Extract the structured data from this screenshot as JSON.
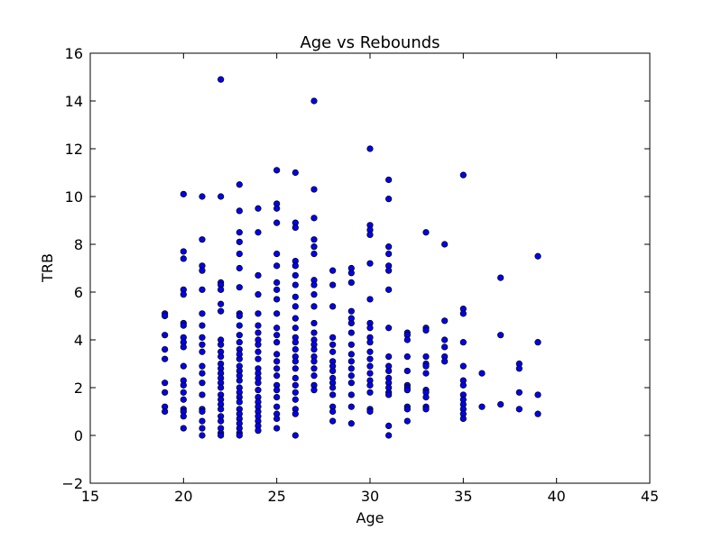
{
  "chart_data": {
    "type": "scatter",
    "title": "Age vs Rebounds",
    "xlabel": "Age",
    "ylabel": "TRB",
    "xlim": [
      15,
      45
    ],
    "ylim": [
      -2,
      16
    ],
    "xticks": [
      15,
      20,
      25,
      30,
      35,
      40,
      45
    ],
    "yticks": [
      -2,
      0,
      2,
      4,
      6,
      8,
      10,
      12,
      14,
      16
    ],
    "grid": false,
    "legend": "none",
    "marker_color": "#0000ff",
    "marker_edge": "#000000",
    "series": [
      {
        "points": [
          [
            19,
            5.1
          ],
          [
            19,
            5.0
          ],
          [
            19,
            4.2
          ],
          [
            19,
            3.6
          ],
          [
            19,
            3.2
          ],
          [
            19,
            2.2
          ],
          [
            19,
            1.8
          ],
          [
            19,
            1.2
          ],
          [
            19,
            1.0
          ],
          [
            20,
            10.1
          ],
          [
            20,
            7.7
          ],
          [
            20,
            7.4
          ],
          [
            20,
            6.1
          ],
          [
            20,
            5.9
          ],
          [
            20,
            4.7
          ],
          [
            20,
            4.6
          ],
          [
            20,
            4.1
          ],
          [
            20,
            3.9
          ],
          [
            20,
            3.7
          ],
          [
            20,
            2.9
          ],
          [
            20,
            2.3
          ],
          [
            20,
            2.1
          ],
          [
            20,
            1.8
          ],
          [
            20,
            1.5
          ],
          [
            20,
            1.1
          ],
          [
            20,
            1.0
          ],
          [
            20,
            0.8
          ],
          [
            20,
            0.3
          ],
          [
            21,
            10.0
          ],
          [
            21,
            8.2
          ],
          [
            21,
            7.1
          ],
          [
            21,
            6.9
          ],
          [
            21,
            6.1
          ],
          [
            21,
            5.1
          ],
          [
            21,
            4.6
          ],
          [
            21,
            4.1
          ],
          [
            21,
            3.8
          ],
          [
            21,
            3.5
          ],
          [
            21,
            2.9
          ],
          [
            21,
            2.6
          ],
          [
            21,
            2.2
          ],
          [
            21,
            1.7
          ],
          [
            21,
            1.1
          ],
          [
            21,
            1.0
          ],
          [
            21,
            0.6
          ],
          [
            21,
            0.3
          ],
          [
            21,
            0.0
          ],
          [
            22,
            14.9
          ],
          [
            22,
            10.0
          ],
          [
            22,
            6.4
          ],
          [
            22,
            6.3
          ],
          [
            22,
            6.1
          ],
          [
            22,
            5.5
          ],
          [
            22,
            5.2
          ],
          [
            22,
            4.0
          ],
          [
            22,
            3.8
          ],
          [
            22,
            3.5
          ],
          [
            22,
            3.3
          ],
          [
            22,
            3.0
          ],
          [
            22,
            2.8
          ],
          [
            22,
            2.6
          ],
          [
            22,
            2.4
          ],
          [
            22,
            2.2
          ],
          [
            22,
            2.0
          ],
          [
            22,
            1.7
          ],
          [
            22,
            1.5
          ],
          [
            22,
            1.3
          ],
          [
            22,
            1.1
          ],
          [
            22,
            0.8
          ],
          [
            22,
            0.6
          ],
          [
            22,
            0.3
          ],
          [
            22,
            0.1
          ],
          [
            22,
            0.0
          ],
          [
            23,
            10.5
          ],
          [
            23,
            9.4
          ],
          [
            23,
            8.5
          ],
          [
            23,
            8.1
          ],
          [
            23,
            7.6
          ],
          [
            23,
            7.0
          ],
          [
            23,
            6.2
          ],
          [
            23,
            5.1
          ],
          [
            23,
            5.0
          ],
          [
            23,
            4.6
          ],
          [
            23,
            4.2
          ],
          [
            23,
            3.9
          ],
          [
            23,
            3.6
          ],
          [
            23,
            3.4
          ],
          [
            23,
            3.2
          ],
          [
            23,
            2.9
          ],
          [
            23,
            2.7
          ],
          [
            23,
            2.5
          ],
          [
            23,
            2.3
          ],
          [
            23,
            2.0
          ],
          [
            23,
            1.8
          ],
          [
            23,
            1.6
          ],
          [
            23,
            1.4
          ],
          [
            23,
            1.1
          ],
          [
            23,
            0.9
          ],
          [
            23,
            0.7
          ],
          [
            23,
            0.5
          ],
          [
            23,
            0.3
          ],
          [
            23,
            0.1
          ],
          [
            23,
            0.0
          ],
          [
            24,
            9.5
          ],
          [
            24,
            8.5
          ],
          [
            24,
            6.7
          ],
          [
            24,
            5.9
          ],
          [
            24,
            5.1
          ],
          [
            24,
            4.6
          ],
          [
            24,
            4.3
          ],
          [
            24,
            4.0
          ],
          [
            24,
            3.8
          ],
          [
            24,
            3.5
          ],
          [
            24,
            3.2
          ],
          [
            24,
            2.8
          ],
          [
            24,
            2.6
          ],
          [
            24,
            2.4
          ],
          [
            24,
            2.2
          ],
          [
            24,
            1.9
          ],
          [
            24,
            1.6
          ],
          [
            24,
            1.4
          ],
          [
            24,
            1.2
          ],
          [
            24,
            1.0
          ],
          [
            24,
            0.8
          ],
          [
            24,
            0.6
          ],
          [
            24,
            0.4
          ],
          [
            24,
            0.2
          ],
          [
            25,
            11.1
          ],
          [
            25,
            9.7
          ],
          [
            25,
            9.5
          ],
          [
            25,
            8.9
          ],
          [
            25,
            7.6
          ],
          [
            25,
            7.1
          ],
          [
            25,
            6.4
          ],
          [
            25,
            6.1
          ],
          [
            25,
            5.7
          ],
          [
            25,
            5.1
          ],
          [
            25,
            4.5
          ],
          [
            25,
            4.2
          ],
          [
            25,
            3.9
          ],
          [
            25,
            3.4
          ],
          [
            25,
            3.1
          ],
          [
            25,
            2.8
          ],
          [
            25,
            2.5
          ],
          [
            25,
            2.1
          ],
          [
            25,
            1.9
          ],
          [
            25,
            1.6
          ],
          [
            25,
            1.2
          ],
          [
            25,
            0.9
          ],
          [
            25,
            0.7
          ],
          [
            25,
            0.3
          ],
          [
            26,
            11.0
          ],
          [
            26,
            8.9
          ],
          [
            26,
            8.7
          ],
          [
            26,
            7.3
          ],
          [
            26,
            7.1
          ],
          [
            26,
            6.7
          ],
          [
            26,
            6.3
          ],
          [
            26,
            5.8
          ],
          [
            26,
            5.4
          ],
          [
            26,
            4.9
          ],
          [
            26,
            4.5
          ],
          [
            26,
            4.1
          ],
          [
            26,
            3.9
          ],
          [
            26,
            3.6
          ],
          [
            26,
            3.3
          ],
          [
            26,
            3.1
          ],
          [
            26,
            2.8
          ],
          [
            26,
            2.4
          ],
          [
            26,
            2.1
          ],
          [
            26,
            1.8
          ],
          [
            26,
            1.5
          ],
          [
            26,
            1.1
          ],
          [
            26,
            0.9
          ],
          [
            26,
            0.0
          ],
          [
            27,
            14.0
          ],
          [
            27,
            10.3
          ],
          [
            27,
            9.1
          ],
          [
            27,
            8.2
          ],
          [
            27,
            7.9
          ],
          [
            27,
            7.6
          ],
          [
            27,
            6.5
          ],
          [
            27,
            6.3
          ],
          [
            27,
            5.9
          ],
          [
            27,
            5.4
          ],
          [
            27,
            4.7
          ],
          [
            27,
            4.3
          ],
          [
            27,
            4.0
          ],
          [
            27,
            3.8
          ],
          [
            27,
            3.6
          ],
          [
            27,
            3.3
          ],
          [
            27,
            3.1
          ],
          [
            27,
            2.8
          ],
          [
            27,
            2.5
          ],
          [
            27,
            2.1
          ],
          [
            27,
            1.9
          ],
          [
            28,
            6.9
          ],
          [
            28,
            6.3
          ],
          [
            28,
            5.4
          ],
          [
            28,
            4.1
          ],
          [
            28,
            3.8
          ],
          [
            28,
            3.5
          ],
          [
            28,
            3.1
          ],
          [
            28,
            2.9
          ],
          [
            28,
            2.7
          ],
          [
            28,
            2.4
          ],
          [
            28,
            2.2
          ],
          [
            28,
            2.0
          ],
          [
            28,
            1.7
          ],
          [
            28,
            1.2
          ],
          [
            28,
            1.0
          ],
          [
            28,
            0.6
          ],
          [
            29,
            7.0
          ],
          [
            29,
            6.8
          ],
          [
            29,
            6.4
          ],
          [
            29,
            5.2
          ],
          [
            29,
            4.9
          ],
          [
            29,
            4.7
          ],
          [
            29,
            4.3
          ],
          [
            29,
            3.8
          ],
          [
            29,
            3.4
          ],
          [
            29,
            3.1
          ],
          [
            29,
            2.8
          ],
          [
            29,
            2.5
          ],
          [
            29,
            2.2
          ],
          [
            29,
            1.7
          ],
          [
            29,
            1.2
          ],
          [
            29,
            0.5
          ],
          [
            30,
            12.0
          ],
          [
            30,
            8.8
          ],
          [
            30,
            8.6
          ],
          [
            30,
            8.4
          ],
          [
            30,
            7.2
          ],
          [
            30,
            5.7
          ],
          [
            30,
            4.7
          ],
          [
            30,
            4.5
          ],
          [
            30,
            4.1
          ],
          [
            30,
            3.9
          ],
          [
            30,
            3.5
          ],
          [
            30,
            3.2
          ],
          [
            30,
            2.9
          ],
          [
            30,
            2.6
          ],
          [
            30,
            2.3
          ],
          [
            30,
            2.1
          ],
          [
            30,
            1.8
          ],
          [
            30,
            1.1
          ],
          [
            30,
            1.0
          ],
          [
            31,
            10.7
          ],
          [
            31,
            9.9
          ],
          [
            31,
            7.9
          ],
          [
            31,
            7.6
          ],
          [
            31,
            7.1
          ],
          [
            31,
            6.9
          ],
          [
            31,
            6.1
          ],
          [
            31,
            4.5
          ],
          [
            31,
            3.3
          ],
          [
            31,
            2.9
          ],
          [
            31,
            2.7
          ],
          [
            31,
            2.4
          ],
          [
            31,
            2.2
          ],
          [
            31,
            2.0
          ],
          [
            31,
            1.8
          ],
          [
            31,
            1.7
          ],
          [
            31,
            0.4
          ],
          [
            31,
            0.0
          ],
          [
            32,
            4.3
          ],
          [
            32,
            4.2
          ],
          [
            32,
            4.0
          ],
          [
            32,
            3.3
          ],
          [
            32,
            2.7
          ],
          [
            32,
            2.1
          ],
          [
            32,
            2.0
          ],
          [
            32,
            1.9
          ],
          [
            32,
            1.2
          ],
          [
            32,
            1.1
          ],
          [
            32,
            0.6
          ],
          [
            33,
            8.5
          ],
          [
            33,
            4.5
          ],
          [
            33,
            4.4
          ],
          [
            33,
            3.3
          ],
          [
            33,
            3.0
          ],
          [
            33,
            2.9
          ],
          [
            33,
            2.6
          ],
          [
            33,
            1.9
          ],
          [
            33,
            1.8
          ],
          [
            33,
            1.6
          ],
          [
            33,
            1.2
          ],
          [
            33,
            1.1
          ],
          [
            34,
            8.0
          ],
          [
            34,
            4.8
          ],
          [
            34,
            4.0
          ],
          [
            34,
            3.7
          ],
          [
            34,
            3.3
          ],
          [
            34,
            3.1
          ],
          [
            35,
            10.9
          ],
          [
            35,
            5.3
          ],
          [
            35,
            5.1
          ],
          [
            35,
            3.9
          ],
          [
            35,
            2.9
          ],
          [
            35,
            2.3
          ],
          [
            35,
            2.1
          ],
          [
            35,
            1.7
          ],
          [
            35,
            1.5
          ],
          [
            35,
            1.3
          ],
          [
            35,
            1.1
          ],
          [
            35,
            0.9
          ],
          [
            35,
            0.7
          ],
          [
            36,
            2.6
          ],
          [
            36,
            1.2
          ],
          [
            37,
            6.6
          ],
          [
            37,
            4.2
          ],
          [
            37,
            1.3
          ],
          [
            38,
            3.0
          ],
          [
            38,
            2.8
          ],
          [
            38,
            1.8
          ],
          [
            38,
            1.1
          ],
          [
            39,
            7.5
          ],
          [
            39,
            3.9
          ],
          [
            39,
            1.7
          ],
          [
            39,
            0.9
          ]
        ]
      }
    ]
  }
}
